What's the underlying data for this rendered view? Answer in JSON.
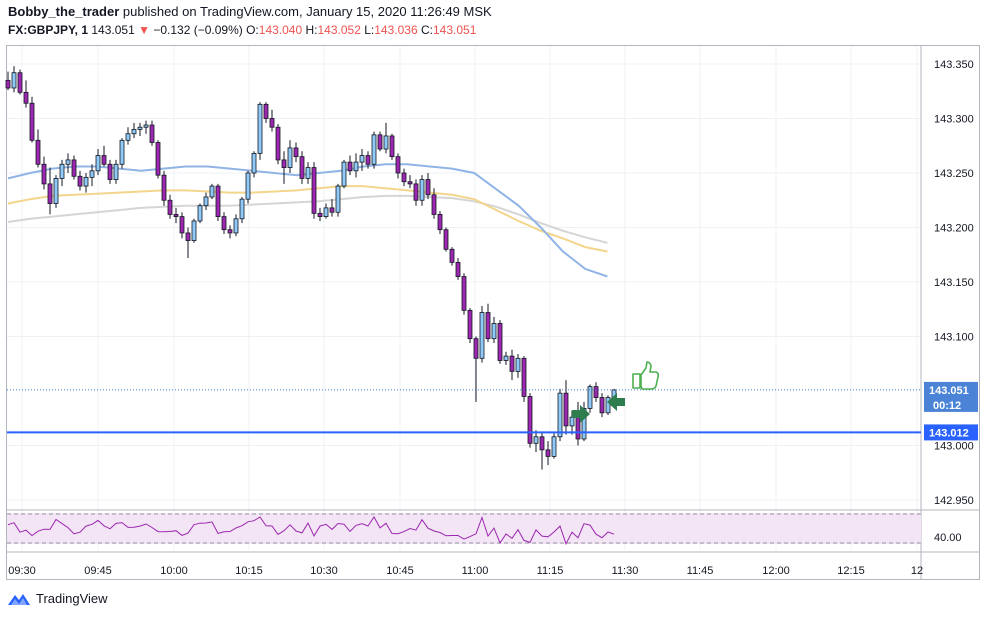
{
  "header": {
    "author": "Bobby_the_trader",
    "published_text": "published on TradingView.com, January 15, 2020 11:26:49 MSK",
    "symbol": "FX:GBPJPY, 1",
    "last": "143.051",
    "change": "−0.132 (−0.09%)",
    "o_label": "O:",
    "o_value": "143.040",
    "h_label": "H:",
    "h_value": "143.052",
    "l_label": "L:",
    "l_value": "143.036",
    "c_label": "C:",
    "c_value": "143.051"
  },
  "footer": {
    "brand": "TradingView"
  },
  "colors": {
    "bull_body": "#90caf9",
    "bear_body": "#9c27b0",
    "wick": "#131722",
    "ma_blue": "#90b4e6",
    "ma_orange": "#f3d58c",
    "ma_gray": "#d5d5d5",
    "level_line": "#2962ff",
    "rsi_line": "#9c27b0",
    "rsi_band": "#f3e5f5",
    "thumb": "#4caf50",
    "arrow": "#2e7d4f"
  },
  "chart_data": {
    "type": "candlestick",
    "x_labels": [
      "09:30",
      "09:45",
      "10:00",
      "10:15",
      "10:30",
      "10:45",
      "11:00",
      "11:15",
      "11:30",
      "11:45",
      "12:00",
      "12:15",
      "12"
    ],
    "y_ticks": [
      "143.350",
      "143.300",
      "143.250",
      "143.200",
      "143.150",
      "143.100",
      "143.000",
      "142.950"
    ],
    "ylim": [
      142.95,
      143.365
    ],
    "price_labels": [
      {
        "value": "143.051",
        "sub": "00:12"
      },
      {
        "value": "143.012"
      }
    ],
    "rsi_tick": "40.00",
    "candles": [
      [
        143.335,
        143.343,
        143.326,
        143.328
      ],
      [
        143.328,
        143.348,
        143.324,
        143.342
      ],
      [
        143.342,
        143.345,
        143.322,
        143.324
      ],
      [
        143.324,
        143.335,
        143.31,
        143.314
      ],
      [
        143.314,
        143.32,
        143.278,
        143.28
      ],
      [
        143.28,
        143.29,
        143.255,
        143.258
      ],
      [
        143.258,
        143.265,
        143.235,
        143.24
      ],
      [
        143.24,
        143.255,
        143.212,
        143.222
      ],
      [
        143.222,
        143.248,
        143.218,
        143.245
      ],
      [
        143.245,
        143.262,
        143.238,
        143.258
      ],
      [
        143.258,
        143.268,
        143.25,
        143.262
      ],
      [
        143.262,
        143.266,
        143.244,
        143.247
      ],
      [
        143.247,
        143.252,
        143.234,
        143.238
      ],
      [
        143.238,
        143.25,
        143.232,
        143.246
      ],
      [
        143.246,
        143.258,
        143.238,
        143.252
      ],
      [
        143.252,
        143.272,
        143.248,
        143.266
      ],
      [
        143.266,
        143.275,
        143.256,
        143.258
      ],
      [
        143.258,
        143.262,
        143.24,
        143.244
      ],
      [
        143.244,
        143.262,
        143.24,
        143.258
      ],
      [
        143.258,
        143.282,
        143.254,
        143.28
      ],
      [
        143.28,
        143.292,
        143.276,
        143.286
      ],
      [
        143.286,
        143.296,
        143.282,
        143.29
      ],
      [
        143.29,
        143.296,
        143.284,
        143.292
      ],
      [
        143.292,
        143.298,
        143.286,
        143.294
      ],
      [
        143.294,
        143.298,
        143.275,
        143.278
      ],
      [
        143.278,
        143.28,
        143.245,
        143.248
      ],
      [
        143.248,
        143.252,
        143.22,
        143.225
      ],
      [
        143.225,
        143.23,
        143.208,
        143.212
      ],
      [
        143.212,
        143.218,
        143.204,
        143.21
      ],
      [
        143.21,
        143.214,
        143.19,
        143.195
      ],
      [
        143.195,
        143.2,
        143.172,
        143.188
      ],
      [
        143.188,
        143.208,
        143.186,
        143.206
      ],
      [
        143.206,
        143.222,
        143.204,
        143.22
      ],
      [
        143.22,
        143.232,
        143.216,
        143.228
      ],
      [
        143.228,
        143.24,
        143.226,
        143.238
      ],
      [
        143.238,
        143.24,
        143.206,
        143.21
      ],
      [
        143.21,
        143.214,
        143.194,
        143.198
      ],
      [
        143.198,
        143.202,
        143.19,
        143.195
      ],
      [
        143.195,
        143.212,
        143.192,
        143.208
      ],
      [
        143.208,
        143.228,
        143.204,
        143.226
      ],
      [
        143.226,
        143.252,
        143.222,
        143.25
      ],
      [
        143.25,
        143.27,
        143.246,
        143.268
      ],
      [
        143.268,
        143.315,
        143.262,
        143.313
      ],
      [
        143.313,
        143.315,
        143.296,
        143.3
      ],
      [
        143.3,
        143.308,
        143.288,
        143.292
      ],
      [
        143.292,
        143.295,
        143.258,
        143.262
      ],
      [
        143.262,
        143.27,
        143.24,
        143.255
      ],
      [
        143.255,
        143.28,
        143.25,
        143.273
      ],
      [
        143.273,
        143.278,
        143.26,
        143.265
      ],
      [
        143.265,
        143.27,
        143.24,
        143.245
      ],
      [
        143.245,
        143.26,
        143.24,
        143.255
      ],
      [
        143.255,
        143.26,
        143.208,
        143.213
      ],
      [
        143.213,
        143.218,
        143.206,
        143.21
      ],
      [
        143.21,
        143.222,
        143.208,
        143.218
      ],
      [
        143.218,
        143.226,
        143.21,
        143.214
      ],
      [
        143.214,
        143.24,
        143.21,
        143.238
      ],
      [
        143.238,
        143.262,
        143.236,
        143.26
      ],
      [
        143.26,
        143.266,
        143.248,
        143.252
      ],
      [
        143.252,
        143.268,
        143.246,
        143.26
      ],
      [
        143.26,
        143.272,
        143.252,
        143.266
      ],
      [
        143.266,
        143.27,
        143.254,
        143.258
      ],
      [
        143.258,
        143.288,
        143.254,
        143.285
      ],
      [
        143.285,
        143.288,
        143.27,
        143.272
      ],
      [
        143.272,
        143.296,
        143.268,
        143.284
      ],
      [
        143.284,
        143.286,
        143.262,
        143.265
      ],
      [
        143.265,
        143.268,
        143.245,
        143.25
      ],
      [
        143.25,
        143.254,
        143.238,
        143.242
      ],
      [
        143.242,
        143.248,
        143.236,
        143.24
      ],
      [
        143.24,
        143.244,
        143.22,
        143.225
      ],
      [
        143.225,
        143.248,
        143.22,
        143.244
      ],
      [
        143.244,
        143.25,
        143.226,
        143.23
      ],
      [
        143.23,
        143.236,
        143.208,
        143.212
      ],
      [
        143.212,
        143.215,
        143.194,
        143.198
      ],
      [
        143.198,
        143.2,
        143.178,
        143.18
      ],
      [
        143.18,
        143.182,
        143.165,
        143.168
      ],
      [
        143.168,
        143.172,
        143.152,
        143.155
      ],
      [
        143.155,
        143.158,
        143.12,
        143.124
      ],
      [
        143.124,
        143.126,
        143.094,
        143.098
      ],
      [
        143.098,
        143.1,
        143.04,
        143.08
      ],
      [
        143.08,
        143.128,
        143.076,
        143.122
      ],
      [
        143.122,
        143.13,
        143.095,
        143.098
      ],
      [
        143.098,
        143.118,
        143.094,
        143.112
      ],
      [
        143.112,
        143.115,
        143.075,
        143.078
      ],
      [
        143.078,
        143.086,
        143.074,
        143.082
      ],
      [
        143.082,
        143.088,
        143.06,
        143.068
      ],
      [
        143.068,
        143.084,
        143.062,
        143.08
      ],
      [
        143.08,
        143.082,
        143.04,
        143.045
      ],
      [
        143.045,
        143.048,
        142.998,
        143.002
      ],
      [
        143.002,
        143.014,
        142.994,
        143.008
      ],
      [
        143.008,
        143.012,
        142.978,
        142.996
      ],
      [
        142.996,
        143.004,
        142.982,
        142.99
      ],
      [
        142.99,
        143.012,
        142.988,
        143.008
      ],
      [
        143.008,
        143.052,
        143.004,
        143.048
      ],
      [
        143.048,
        143.06,
        143.01,
        143.018
      ],
      [
        143.018,
        143.032,
        143.01,
        143.026
      ],
      [
        143.026,
        143.04,
        143.0,
        143.006
      ],
      [
        143.006,
        143.04,
        143.004,
        143.034
      ],
      [
        143.034,
        143.056,
        143.03,
        143.054
      ],
      [
        143.054,
        143.058,
        143.04,
        143.044
      ],
      [
        143.044,
        143.048,
        143.026,
        143.03
      ],
      [
        143.03,
        143.046,
        143.028,
        143.044
      ],
      [
        143.044,
        143.052,
        143.036,
        143.051
      ]
    ],
    "ma_blue": [
      143.245,
      143.25,
      143.254,
      143.256,
      143.256,
      143.254,
      143.252,
      143.254,
      143.256,
      143.256,
      143.254,
      143.252,
      143.25,
      143.248,
      143.25,
      143.252,
      143.256,
      143.258,
      143.258,
      143.256,
      143.254,
      143.25,
      143.235,
      143.22,
      143.2,
      143.178,
      143.162,
      143.155
    ],
    "ma_orange": [
      143.222,
      143.226,
      143.229,
      143.23,
      143.231,
      143.232,
      143.233,
      143.234,
      143.234,
      143.233,
      143.232,
      143.232,
      143.233,
      143.234,
      143.236,
      143.238,
      143.238,
      143.236,
      143.234,
      143.232,
      143.23,
      143.226,
      143.216,
      143.206,
      143.197,
      143.19,
      143.182,
      143.178
    ],
    "ma_gray": [
      143.205,
      143.208,
      143.21,
      143.212,
      143.214,
      143.216,
      143.218,
      143.219,
      143.22,
      143.22,
      143.22,
      143.221,
      143.222,
      143.223,
      143.224,
      143.226,
      143.228,
      143.229,
      143.229,
      143.228,
      143.227,
      143.224,
      143.219,
      143.212,
      143.204,
      143.197,
      143.191,
      143.186
    ]
  }
}
